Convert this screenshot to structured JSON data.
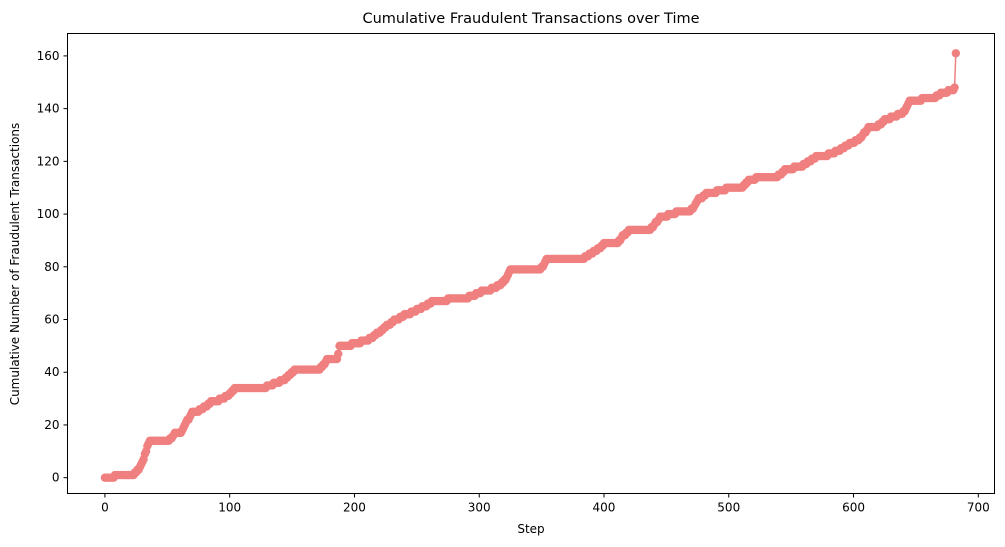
{
  "chart_data": {
    "type": "line",
    "title": "Cumulative Fraudulent Transactions over Time",
    "xlabel": "Step",
    "ylabel": "Cumulative Number of Fraudulent Transactions",
    "xlim": [
      -30,
      713
    ],
    "ylim": [
      -6,
      168.5
    ],
    "xticks": [
      0,
      100,
      200,
      300,
      400,
      500,
      600,
      700
    ],
    "yticks": [
      0,
      20,
      40,
      60,
      80,
      100,
      120,
      140,
      160
    ],
    "grid": false,
    "colors": {
      "series": "#f08080",
      "axes": "#000000",
      "background": "#ffffff"
    },
    "series": [
      {
        "name": "Cumulative Fraudulent Transactions",
        "marker": "circle",
        "anchors": [
          [
            0,
            0
          ],
          [
            5,
            0
          ],
          [
            8,
            1
          ],
          [
            20,
            1
          ],
          [
            24,
            2
          ],
          [
            28,
            4
          ],
          [
            30,
            6
          ],
          [
            32,
            9
          ],
          [
            34,
            12
          ],
          [
            36,
            14
          ],
          [
            50,
            14
          ],
          [
            56,
            17
          ],
          [
            62,
            18
          ],
          [
            66,
            22
          ],
          [
            70,
            25
          ],
          [
            76,
            26
          ],
          [
            85,
            29
          ],
          [
            92,
            30
          ],
          [
            100,
            32
          ],
          [
            104,
            34
          ],
          [
            108,
            34
          ],
          [
            120,
            34
          ],
          [
            130,
            35
          ],
          [
            145,
            38
          ],
          [
            152,
            41
          ],
          [
            170,
            41
          ],
          [
            175,
            43
          ],
          [
            178,
            45
          ],
          [
            186,
            45
          ],
          [
            188,
            50
          ],
          [
            198,
            51
          ],
          [
            212,
            53
          ],
          [
            218,
            55
          ],
          [
            226,
            58
          ],
          [
            232,
            60
          ],
          [
            240,
            62
          ],
          [
            250,
            64
          ],
          [
            262,
            67
          ],
          [
            275,
            68
          ],
          [
            292,
            69
          ],
          [
            302,
            71
          ],
          [
            310,
            72
          ],
          [
            318,
            74
          ],
          [
            322,
            76
          ],
          [
            325,
            79
          ],
          [
            340,
            79
          ],
          [
            350,
            80
          ],
          [
            354,
            83
          ],
          [
            362,
            83
          ],
          [
            385,
            84
          ],
          [
            395,
            87
          ],
          [
            400,
            89
          ],
          [
            410,
            89
          ],
          [
            415,
            92
          ],
          [
            420,
            94
          ],
          [
            438,
            95
          ],
          [
            445,
            99
          ],
          [
            458,
            101
          ],
          [
            470,
            102
          ],
          [
            476,
            106
          ],
          [
            482,
            108
          ],
          [
            498,
            110
          ],
          [
            512,
            111
          ],
          [
            516,
            113
          ],
          [
            522,
            114
          ],
          [
            540,
            115
          ],
          [
            545,
            117
          ],
          [
            560,
            119
          ],
          [
            570,
            122
          ],
          [
            580,
            123
          ],
          [
            590,
            125
          ],
          [
            597,
            127
          ],
          [
            605,
            129
          ],
          [
            612,
            133
          ],
          [
            620,
            134
          ],
          [
            625,
            136
          ],
          [
            630,
            137
          ],
          [
            640,
            139
          ],
          [
            645,
            143
          ],
          [
            655,
            144
          ],
          [
            662,
            144
          ],
          [
            670,
            146
          ],
          [
            676,
            147
          ],
          [
            681,
            148
          ],
          [
            682,
            161
          ]
        ]
      }
    ]
  }
}
